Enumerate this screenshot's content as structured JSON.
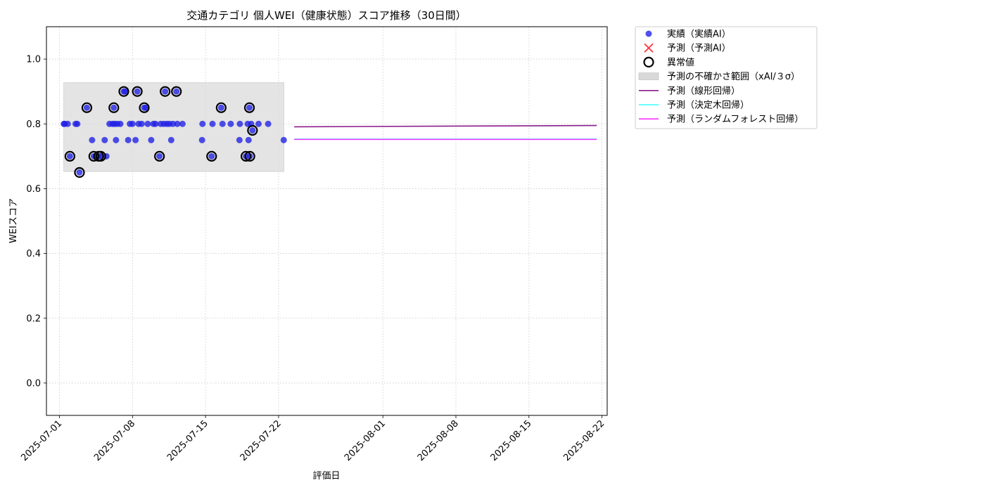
{
  "chart_data": {
    "type": "scatter",
    "title": "交通カテゴリ 個人WEI（健康状態）スコア推移（30日間）",
    "xlabel": "評価日",
    "ylabel": "WEIスコア",
    "xlim": [
      "2025-06-29T18:00",
      "2025-08-22T12:00"
    ],
    "ylim": [
      -0.1,
      1.1
    ],
    "x_ticks": [
      "2025-07-01",
      "2025-07-08",
      "2025-07-15",
      "2025-07-22",
      "2025-08-01",
      "2025-08-08",
      "2025-08-15",
      "2025-08-22"
    ],
    "y_ticks": [
      "0.0",
      "0.2",
      "0.4",
      "0.6",
      "0.8",
      "1.0"
    ],
    "grid": true,
    "legend_position": "outside-top-right",
    "colors": {
      "actual": "#1f1fe6",
      "predicted": "#ff3333",
      "anomaly_edge": "#000000",
      "uncertainty": "#d9d9d9",
      "linear": "#8b1a8b",
      "decision_tree": "#33ffff",
      "random_forest": "#ff33ff"
    },
    "legend": [
      {
        "key": "actual",
        "label": "実績（実績AI）",
        "kind": "dot"
      },
      {
        "key": "predicted",
        "label": "予測（予測AI）",
        "kind": "cross"
      },
      {
        "key": "anomaly",
        "label": "異常値",
        "kind": "ring"
      },
      {
        "key": "uncertainty",
        "label": "予測の不確かさ範囲（xAI/３σ）",
        "kind": "band"
      },
      {
        "key": "linear",
        "label": "予測（線形回帰）",
        "kind": "line"
      },
      {
        "key": "decision_tree",
        "label": "予測（決定木回帰）",
        "kind": "line"
      },
      {
        "key": "random_forest",
        "label": "予測（ランダムフォレスト回帰）",
        "kind": "line"
      }
    ],
    "uncertainty_band": {
      "x_start": "2025-07-01T10:00",
      "x_end": "2025-07-22T12:00",
      "y_low": 0.653,
      "y_high": 0.927
    },
    "series": [
      {
        "name": "実績（実績AI）",
        "points": [
          [
            "2025-07-01T10:00",
            0.8
          ],
          [
            "2025-07-01T12:00",
            0.8
          ],
          [
            "2025-07-01T19:00",
            0.8
          ],
          [
            "2025-07-02T00:00",
            0.7
          ],
          [
            "2025-07-02T13:00",
            0.8
          ],
          [
            "2025-07-02T17:00",
            0.8
          ],
          [
            "2025-07-02T22:00",
            0.65
          ],
          [
            "2025-07-03T15:00",
            0.85
          ],
          [
            "2025-07-04T07:00",
            0.7
          ],
          [
            "2025-07-04T03:00",
            0.75
          ],
          [
            "2025-07-04T18:00",
            0.7
          ],
          [
            "2025-07-04T23:00",
            0.7
          ],
          [
            "2025-07-05T08:00",
            0.75
          ],
          [
            "2025-07-05T12:00",
            0.7
          ],
          [
            "2025-07-05T19:00",
            0.8
          ],
          [
            "2025-07-06T02:00",
            0.8
          ],
          [
            "2025-07-06T05:00",
            0.85
          ],
          [
            "2025-07-06T07:00",
            0.8
          ],
          [
            "2025-07-06T10:00",
            0.75
          ],
          [
            "2025-07-06T13:00",
            0.8
          ],
          [
            "2025-07-06T20:00",
            0.8
          ],
          [
            "2025-07-07T04:00",
            0.9
          ],
          [
            "2025-07-07T07:00",
            0.9
          ],
          [
            "2025-07-07T14:00",
            0.75
          ],
          [
            "2025-07-07T18:00",
            0.8
          ],
          [
            "2025-07-08T00:00",
            0.8
          ],
          [
            "2025-07-08T07:00",
            0.75
          ],
          [
            "2025-07-08T11:00",
            0.9
          ],
          [
            "2025-07-08T14:00",
            0.8
          ],
          [
            "2025-07-08T21:00",
            0.8
          ],
          [
            "2025-07-09T03:00",
            0.85
          ],
          [
            "2025-07-09T07:00",
            0.85
          ],
          [
            "2025-07-09T11:00",
            0.8
          ],
          [
            "2025-07-09T19:00",
            0.75
          ],
          [
            "2025-07-10T00:00",
            0.8
          ],
          [
            "2025-07-10T05:00",
            0.8
          ],
          [
            "2025-07-10T14:00",
            0.7
          ],
          [
            "2025-07-10T17:00",
            0.8
          ],
          [
            "2025-07-11T00:00",
            0.8
          ],
          [
            "2025-07-11T03:00",
            0.9
          ],
          [
            "2025-07-11T07:00",
            0.8
          ],
          [
            "2025-07-11T13:00",
            0.8
          ],
          [
            "2025-07-11T17:00",
            0.75
          ],
          [
            "2025-07-11T21:00",
            0.8
          ],
          [
            "2025-07-12T05:00",
            0.9
          ],
          [
            "2025-07-12T07:00",
            0.8
          ],
          [
            "2025-07-12T19:00",
            0.8
          ],
          [
            "2025-07-14T16:00",
            0.75
          ],
          [
            "2025-07-14T17:00",
            0.8
          ],
          [
            "2025-07-15T14:00",
            0.7
          ],
          [
            "2025-07-15T16:00",
            0.8
          ],
          [
            "2025-07-16T12:00",
            0.85
          ],
          [
            "2025-07-16T15:00",
            0.8
          ],
          [
            "2025-07-17T10:00",
            0.8
          ],
          [
            "2025-07-18T06:00",
            0.75
          ],
          [
            "2025-07-18T07:00",
            0.8
          ],
          [
            "2025-07-18T21:00",
            0.7
          ],
          [
            "2025-07-19T01:00",
            0.8
          ],
          [
            "2025-07-19T03:00",
            0.75
          ],
          [
            "2025-07-19T05:00",
            0.85
          ],
          [
            "2025-07-19T06:00",
            0.7
          ],
          [
            "2025-07-19T09:00",
            0.8
          ],
          [
            "2025-07-19T12:00",
            0.78
          ],
          [
            "2025-07-20T02:00",
            0.8
          ],
          [
            "2025-07-21T00:00",
            0.8
          ],
          [
            "2025-07-22T12:00",
            0.75
          ]
        ]
      },
      {
        "name": "異常値",
        "points": [
          [
            "2025-07-02T00:00",
            0.7
          ],
          [
            "2025-07-02T22:00",
            0.65
          ],
          [
            "2025-07-03T15:00",
            0.85
          ],
          [
            "2025-07-04T07:00",
            0.7
          ],
          [
            "2025-07-04T18:00",
            0.7
          ],
          [
            "2025-07-04T23:00",
            0.7
          ],
          [
            "2025-07-06T05:00",
            0.85
          ],
          [
            "2025-07-07T04:00",
            0.9
          ],
          [
            "2025-07-08T11:00",
            0.9
          ],
          [
            "2025-07-09T03:00",
            0.85
          ],
          [
            "2025-07-10T14:00",
            0.7
          ],
          [
            "2025-07-11T03:00",
            0.9
          ],
          [
            "2025-07-12T05:00",
            0.9
          ],
          [
            "2025-07-15T14:00",
            0.7
          ],
          [
            "2025-07-16T12:00",
            0.85
          ],
          [
            "2025-07-18T21:00",
            0.7
          ],
          [
            "2025-07-19T05:00",
            0.85
          ],
          [
            "2025-07-19T06:00",
            0.7
          ],
          [
            "2025-07-19T12:00",
            0.78
          ]
        ]
      },
      {
        "name": "予測（線形回帰）",
        "points": [
          [
            "2025-07-23T12:00",
            0.791
          ],
          [
            "2025-08-21T12:00",
            0.795
          ]
        ]
      },
      {
        "name": "予測（決定木回帰）",
        "points": [
          [
            "2025-07-23T12:00",
            0.753
          ],
          [
            "2025-08-21T12:00",
            0.753
          ]
        ]
      },
      {
        "name": "予測（ランダムフォレスト回帰）",
        "points": [
          [
            "2025-07-23T12:00",
            0.752
          ],
          [
            "2025-08-21T12:00",
            0.752
          ]
        ]
      }
    ]
  }
}
